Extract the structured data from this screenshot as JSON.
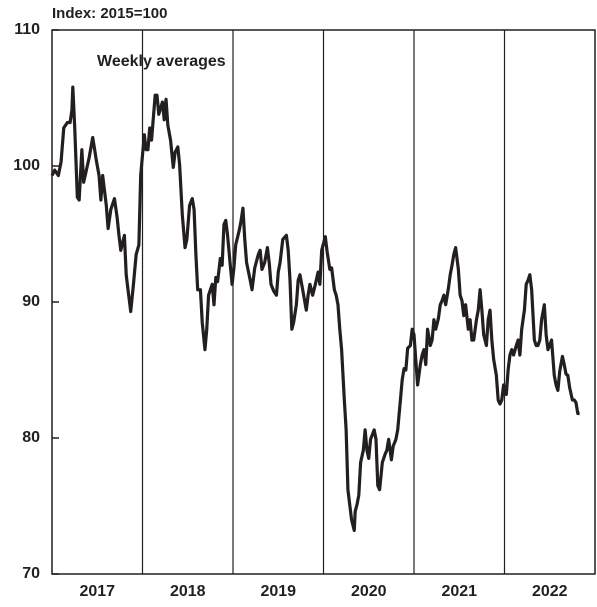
{
  "chart_data": {
    "type": "line",
    "y_axis_label": "Index: 2015=100",
    "annotation": "Weekly averages",
    "xlim": [
      2017,
      2023
    ],
    "xticks": [
      2018,
      2019,
      2020,
      2021,
      2022
    ],
    "x_band_labels": [
      "2017",
      "2018",
      "2019",
      "2020",
      "2021",
      "2022"
    ],
    "ylim": [
      70,
      110
    ],
    "yticks": [
      70,
      80,
      90,
      100,
      110
    ],
    "series": [
      {
        "color": "#231f20",
        "x": [
          2017.0,
          2017.03,
          2017.07,
          2017.1,
          2017.13,
          2017.17,
          2017.2,
          2017.22,
          2017.23,
          2017.25,
          2017.28,
          2017.3,
          2017.33,
          2017.35,
          2017.38,
          2017.41,
          2017.45,
          2017.49,
          2017.52,
          2017.54,
          2017.56,
          2017.6,
          2017.62,
          2017.65,
          2017.69,
          2017.72,
          2017.74,
          2017.76,
          2017.8,
          2017.82,
          2017.84,
          2017.87,
          2017.9,
          2017.93,
          2017.96,
          2017.98,
          2018.02,
          2018.04,
          2018.06,
          2018.08,
          2018.1,
          2018.14,
          2018.16,
          2018.18,
          2018.22,
          2018.24,
          2018.26,
          2018.28,
          2018.31,
          2018.34,
          2018.36,
          2018.39,
          2018.41,
          2018.44,
          2018.47,
          2018.49,
          2018.52,
          2018.55,
          2018.57,
          2018.59,
          2018.61,
          2018.64,
          2018.66,
          2018.69,
          2018.71,
          2018.73,
          2018.77,
          2018.79,
          2018.81,
          2018.83,
          2018.86,
          2018.88,
          2018.9,
          2018.92,
          2018.94,
          2018.97,
          2018.99,
          2019.01,
          2019.03,
          2019.07,
          2019.09,
          2019.11,
          2019.13,
          2019.15,
          2019.19,
          2019.21,
          2019.24,
          2019.28,
          2019.3,
          2019.32,
          2019.35,
          2019.38,
          2019.4,
          2019.42,
          2019.45,
          2019.48,
          2019.5,
          2019.52,
          2019.55,
          2019.59,
          2019.61,
          2019.63,
          2019.65,
          2019.67,
          2019.7,
          2019.72,
          2019.74,
          2019.77,
          2019.81,
          2019.83,
          2019.85,
          2019.88,
          2019.91,
          2019.94,
          2019.96,
          2019.98,
          2020.02,
          2020.04,
          2020.07,
          2020.09,
          2020.12,
          2020.14,
          2020.16,
          2020.18,
          2020.2,
          2020.23,
          2020.25,
          2020.27,
          2020.29,
          2020.31,
          2020.34,
          2020.35,
          2020.37,
          2020.39,
          2020.41,
          2020.44,
          2020.46,
          2020.48,
          2020.5,
          2020.52,
          2020.56,
          2020.58,
          2020.6,
          2020.62,
          2020.65,
          2020.68,
          2020.7,
          2020.72,
          2020.75,
          2020.77,
          2020.8,
          2020.82,
          2020.85,
          2020.87,
          2020.89,
          2020.91,
          2020.93,
          2020.96,
          2020.98,
          2021.0,
          2021.02,
          2021.04,
          2021.07,
          2021.09,
          2021.11,
          2021.13,
          2021.15,
          2021.18,
          2021.2,
          2021.22,
          2021.24,
          2021.27,
          2021.29,
          2021.31,
          2021.33,
          2021.35,
          2021.38,
          2021.4,
          2021.42,
          2021.44,
          2021.46,
          2021.49,
          2021.51,
          2021.53,
          2021.55,
          2021.57,
          2021.6,
          2021.62,
          2021.64,
          2021.66,
          2021.69,
          2021.71,
          2021.73,
          2021.75,
          2021.77,
          2021.8,
          2021.82,
          2021.84,
          2021.86,
          2021.88,
          2021.91,
          2021.93,
          2021.95,
          2021.97,
          2021.99,
          2022.02,
          2022.04,
          2022.06,
          2022.08,
          2022.1,
          2022.13,
          2022.15,
          2022.17,
          2022.19,
          2022.22,
          2022.24,
          2022.26,
          2022.28,
          2022.3,
          2022.33,
          2022.35,
          2022.37,
          2022.39,
          2022.41,
          2022.44,
          2022.46,
          2022.48,
          2022.5,
          2022.52,
          2022.55,
          2022.57,
          2022.59,
          2022.61,
          2022.64,
          2022.66,
          2022.68,
          2022.7,
          2022.72,
          2022.75,
          2022.77,
          2022.79,
          2022.81,
          2022.83
        ],
        "values": [
          99.3,
          99.7,
          99.3,
          100.3,
          102.8,
          103.2,
          103.2,
          104.1,
          105.8,
          103.0,
          97.7,
          97.5,
          101.2,
          98.8,
          99.7,
          100.6,
          102.1,
          100.4,
          99.3,
          97.5,
          99.3,
          97.1,
          95.4,
          96.8,
          97.6,
          96.2,
          94.9,
          93.8,
          94.9,
          92.0,
          90.9,
          89.3,
          91.3,
          93.5,
          94.2,
          99.3,
          102.3,
          101.2,
          101.2,
          102.8,
          101.9,
          105.2,
          105.2,
          103.8,
          104.7,
          103.4,
          104.9,
          103.0,
          101.9,
          99.9,
          101.0,
          101.4,
          100.1,
          96.4,
          94.0,
          94.6,
          97.1,
          97.6,
          96.8,
          93.5,
          90.9,
          90.9,
          88.5,
          86.5,
          88.0,
          90.5,
          91.3,
          89.8,
          91.8,
          91.5,
          93.2,
          92.7,
          95.7,
          96.0,
          94.9,
          92.7,
          91.3,
          92.5,
          94.2,
          95.3,
          96.0,
          96.9,
          94.6,
          92.9,
          91.6,
          90.9,
          92.5,
          93.5,
          93.8,
          92.4,
          92.9,
          94.0,
          92.9,
          91.3,
          90.8,
          90.5,
          92.2,
          92.9,
          94.6,
          94.9,
          93.8,
          91.6,
          88.0,
          88.5,
          89.8,
          91.6,
          92.0,
          90.9,
          89.4,
          90.5,
          91.3,
          90.5,
          91.3,
          92.2,
          91.3,
          93.8,
          94.8,
          93.7,
          92.4,
          92.5,
          90.9,
          90.5,
          89.8,
          88.0,
          86.5,
          82.8,
          80.6,
          76.2,
          75.1,
          74.0,
          73.2,
          74.6,
          75.1,
          75.8,
          78.2,
          79.1,
          80.6,
          79.1,
          78.5,
          79.9,
          80.6,
          79.9,
          76.5,
          76.2,
          78.2,
          78.8,
          79.1,
          79.9,
          78.4,
          79.4,
          79.9,
          80.6,
          82.8,
          84.3,
          85.1,
          85.0,
          86.6,
          86.8,
          88.0,
          87.6,
          85.7,
          83.9,
          85.4,
          86.1,
          86.5,
          85.4,
          88.0,
          86.8,
          87.2,
          88.7,
          88.0,
          88.8,
          89.8,
          90.1,
          90.5,
          89.8,
          91.0,
          92.0,
          92.7,
          93.5,
          94.0,
          92.4,
          90.5,
          90.1,
          89.0,
          89.8,
          88.0,
          88.7,
          87.2,
          87.2,
          88.7,
          89.4,
          90.9,
          89.4,
          87.6,
          86.8,
          88.7,
          89.4,
          87.2,
          85.8,
          84.6,
          82.8,
          82.5,
          82.8,
          83.9,
          83.2,
          85.0,
          86.1,
          86.5,
          86.1,
          86.8,
          87.2,
          86.1,
          88.0,
          89.4,
          91.3,
          91.6,
          92.0,
          90.9,
          87.2,
          86.8,
          86.8,
          87.2,
          88.7,
          89.8,
          87.6,
          86.5,
          86.8,
          87.2,
          84.6,
          83.9,
          83.5,
          84.9,
          86.0,
          85.4,
          84.7,
          84.6,
          83.7,
          82.8,
          82.8,
          82.6,
          81.8,
          81.8
        ]
      }
    ]
  }
}
